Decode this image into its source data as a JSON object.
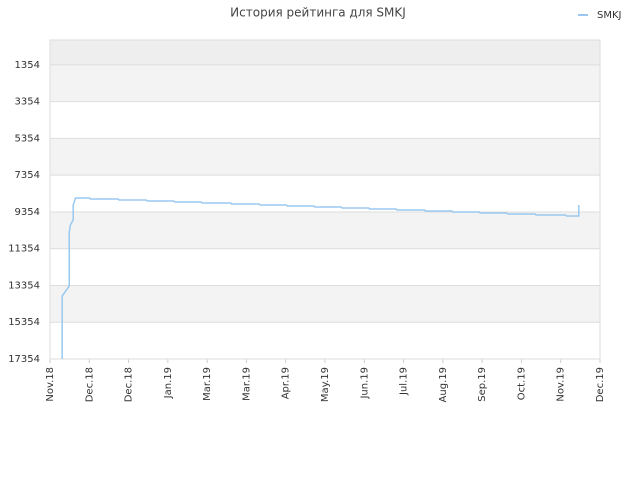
{
  "chart_data": {
    "type": "line",
    "title": "История рейтинга для SMKJ",
    "series": [
      {
        "name": "SMKJ",
        "color": "#99c9f0",
        "x": [
          0.31,
          0.31,
          0.49,
          0.49,
          0.52,
          0.59,
          0.59,
          0.65,
          1.01,
          1.03,
          1.73,
          1.76,
          2.45,
          2.48,
          3.15,
          3.18,
          3.85,
          3.87,
          4.6,
          4.62,
          5.32,
          5.35,
          6.02,
          6.04,
          6.72,
          6.74,
          7.41,
          7.44,
          8.11,
          8.14,
          8.81,
          8.83,
          9.53,
          9.56,
          10.23,
          10.26,
          10.93,
          10.95,
          11.62,
          11.65,
          12.35,
          12.37,
          13.12,
          13.15,
          13.46,
          13.46
        ],
        "values": [
          17354,
          13927,
          13382,
          10444,
          10064,
          9792,
          8976,
          8595,
          8595,
          8650,
          8650,
          8704,
          8704,
          8758,
          8758,
          8813,
          8813,
          8867,
          8867,
          8922,
          8922,
          8976,
          8976,
          9030,
          9030,
          9085,
          9085,
          9139,
          9139,
          9194,
          9194,
          9248,
          9248,
          9302,
          9302,
          9357,
          9357,
          9411,
          9411,
          9466,
          9466,
          9520,
          9520,
          9574,
          9574,
          8976
        ]
      }
    ],
    "xlim": [
      0,
      14
    ],
    "xticks": [
      {
        "value": 0,
        "label": "Nov.18"
      },
      {
        "value": 1,
        "label": "Dec.18"
      },
      {
        "value": 2,
        "label": "Dec.18"
      },
      {
        "value": 3,
        "label": "Jan.19"
      },
      {
        "value": 4,
        "label": "Mar.19"
      },
      {
        "value": 5,
        "label": "Mar.19"
      },
      {
        "value": 6,
        "label": "Apr.19"
      },
      {
        "value": 7,
        "label": "May.19"
      },
      {
        "value": 8,
        "label": "Jun.19"
      },
      {
        "value": 9,
        "label": "Jul.19"
      },
      {
        "value": 10,
        "label": "Aug.19"
      },
      {
        "value": 11,
        "label": "Sep.19"
      },
      {
        "value": 12,
        "label": "Oct.19"
      },
      {
        "value": 13,
        "label": "Nov.19"
      },
      {
        "value": 14,
        "label": "Dec.19"
      }
    ],
    "ylim": [
      17354,
      0
    ],
    "yticks": [
      1354,
      3354,
      5354,
      7354,
      9354,
      11354,
      13354,
      15354,
      17354
    ],
    "grid": true,
    "legend": "top-right"
  }
}
